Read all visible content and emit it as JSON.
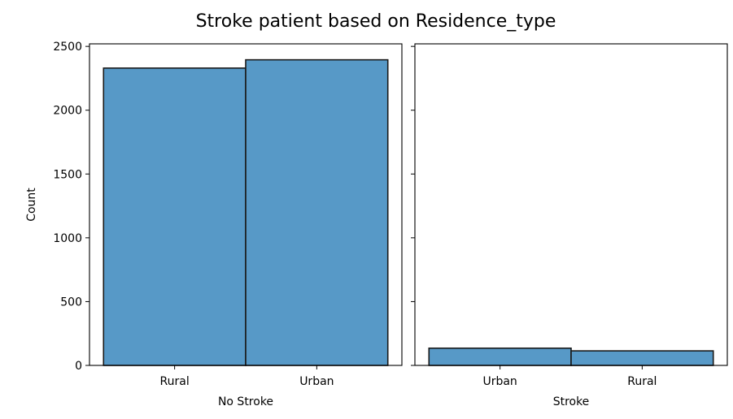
{
  "figure": {
    "title": "Stroke patient based on Residence_type"
  },
  "colors": {
    "bar_fill": "#5799c7",
    "bar_edge": "#1a1a1a",
    "axis": "#000000",
    "background": "#ffffff"
  },
  "chart_data": [
    {
      "type": "bar",
      "title": "",
      "xlabel": "No Stroke",
      "ylabel": "Count",
      "categories": [
        "Rural",
        "Urban"
      ],
      "values": [
        2330,
        2395
      ],
      "ylim": [
        0,
        2520
      ],
      "yticks": [
        0,
        500,
        1000,
        1500,
        2000,
        2500
      ],
      "grid": false
    },
    {
      "type": "bar",
      "title": "",
      "xlabel": "Stroke",
      "ylabel": "",
      "categories": [
        "Urban",
        "Rural"
      ],
      "values": [
        135,
        114
      ],
      "ylim": [
        0,
        2520
      ],
      "yticks": [
        0,
        500,
        1000,
        1500,
        2000,
        2500
      ],
      "grid": false
    }
  ]
}
